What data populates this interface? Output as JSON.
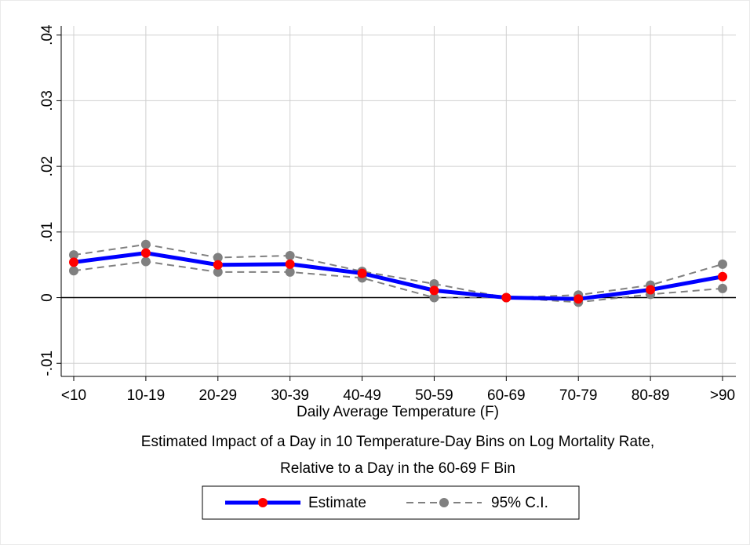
{
  "chart_data": {
    "type": "line",
    "categories": [
      "<10",
      "10-19",
      "20-29",
      "30-39",
      "40-49",
      "50-59",
      "60-69",
      "70-79",
      "80-89",
      ">90"
    ],
    "xlabel": "Daily Average Temperature (F)",
    "note": [
      "Estimated Impact of a Day in 10 Temperature-Day Bins on Log Mortality Rate,",
      "Relative to a Day in the 60-69 F Bin"
    ],
    "series": [
      {
        "name": "Estimate",
        "color": "#0000ff",
        "marker_color": "#ff0000",
        "values": [
          0.0054,
          0.0068,
          0.005,
          0.0051,
          0.0037,
          0.0011,
          0,
          -0.0002,
          0.0012,
          0.0032
        ]
      },
      {
        "name": "95% C.I.",
        "color": "#808080",
        "marker_color": "#808080",
        "upper": [
          0.0065,
          0.0081,
          0.0061,
          0.0064,
          0.004,
          0.0021,
          0,
          0.0004,
          0.0019,
          0.0051
        ],
        "lower": [
          0.0041,
          0.0055,
          0.0039,
          0.0039,
          0.003,
          0,
          0,
          -0.0007,
          0.0005,
          0.0014
        ]
      }
    ],
    "ylim": [
      -0.012,
      0.0414
    ],
    "yticks": [
      {
        "value": -0.01,
        "label": "-.01"
      },
      0,
      {
        "value": 0.01,
        "label": ".01"
      },
      {
        "value": 0.02,
        "label": ".02"
      },
      {
        "value": 0.03,
        "label": ".03"
      },
      {
        "value": 0.04,
        "label": ".04"
      }
    ],
    "grid": true,
    "zero_line": true,
    "legend": "bottom"
  }
}
